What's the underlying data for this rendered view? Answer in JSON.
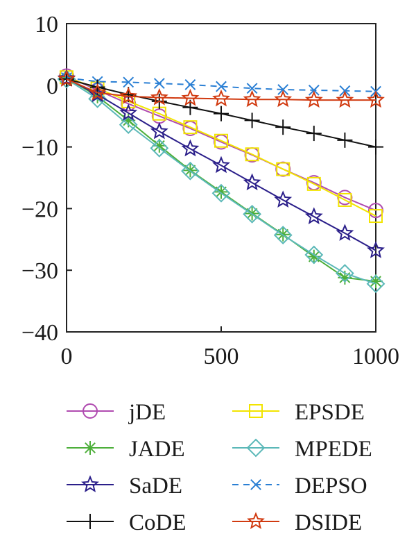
{
  "chart_data": {
    "type": "line",
    "title": "",
    "xlabel": "",
    "ylabel": "",
    "xlim": [
      0,
      1000
    ],
    "ylim": [
      -40,
      10
    ],
    "xticks": [
      0,
      500,
      1000
    ],
    "yticks": [
      10,
      0,
      -10,
      -20,
      -30,
      -40
    ],
    "xtick_labels": [
      "0",
      "500",
      "1000"
    ],
    "ytick_labels": [
      "10",
      "0",
      "−10",
      "−20",
      "−30",
      "−40"
    ],
    "grid": false,
    "legend_placement": "bottom",
    "x": [
      0,
      100,
      200,
      300,
      400,
      500,
      600,
      700,
      800,
      900,
      1000
    ],
    "series": [
      {
        "name": "jDE",
        "color": "#b04bb0",
        "marker": "circle",
        "dash": "solid",
        "values": [
          1.5,
          -0.8,
          -3.0,
          -5.0,
          -7.0,
          -9.2,
          -11.3,
          -13.6,
          -15.8,
          -18.2,
          -20.3
        ]
      },
      {
        "name": "EPSDE",
        "color": "#f2e400",
        "marker": "square",
        "dash": "solid",
        "values": [
          1.3,
          -0.5,
          -2.6,
          -4.6,
          -6.8,
          -9.0,
          -11.2,
          -13.6,
          -16.0,
          -18.6,
          -21.2
        ]
      },
      {
        "name": "JADE",
        "color": "#4daf3a",
        "marker": "asterisk",
        "dash": "solid",
        "values": [
          1.2,
          -1.8,
          -5.7,
          -9.8,
          -13.8,
          -17.3,
          -20.8,
          -24.2,
          -27.8,
          -31.2,
          -31.8
        ]
      },
      {
        "name": "MPEDE",
        "color": "#5bb8b8",
        "marker": "diamond",
        "dash": "solid",
        "values": [
          1.0,
          -2.2,
          -6.4,
          -10.2,
          -13.9,
          -17.5,
          -20.9,
          -24.3,
          -27.5,
          -30.5,
          -32.2
        ]
      },
      {
        "name": "SaDE",
        "color": "#2b1f8a",
        "marker": "star",
        "dash": "solid",
        "values": [
          1.1,
          -1.5,
          -4.5,
          -7.5,
          -10.3,
          -13.0,
          -15.8,
          -18.6,
          -21.3,
          -24.0,
          -26.8
        ]
      },
      {
        "name": "DEPSO",
        "color": "#2a7fd4",
        "marker": "x",
        "dash": "dashed",
        "values": [
          1.2,
          0.6,
          0.5,
          0.3,
          0.1,
          -0.2,
          -0.5,
          -0.7,
          -0.8,
          -0.9,
          -1.0
        ]
      },
      {
        "name": "CoDE",
        "color": "#111111",
        "marker": "plus",
        "dash": "solid",
        "values": [
          1.0,
          -0.3,
          -1.5,
          -2.6,
          -3.6,
          -4.6,
          -5.7,
          -6.8,
          -7.8,
          -8.9,
          -10.0
        ]
      },
      {
        "name": "DSIDE",
        "color": "#d13a10",
        "marker": "star",
        "dash": "solid",
        "values": [
          1.0,
          -1.2,
          -1.8,
          -2.0,
          -2.1,
          -2.2,
          -2.3,
          -2.3,
          -2.4,
          -2.4,
          -2.4
        ]
      }
    ],
    "legend": [
      [
        "jDE",
        "EPSDE"
      ],
      [
        "JADE",
        "MPEDE"
      ],
      [
        "SaDE",
        "DEPSO"
      ],
      [
        "CoDE",
        "DSIDE"
      ]
    ]
  }
}
